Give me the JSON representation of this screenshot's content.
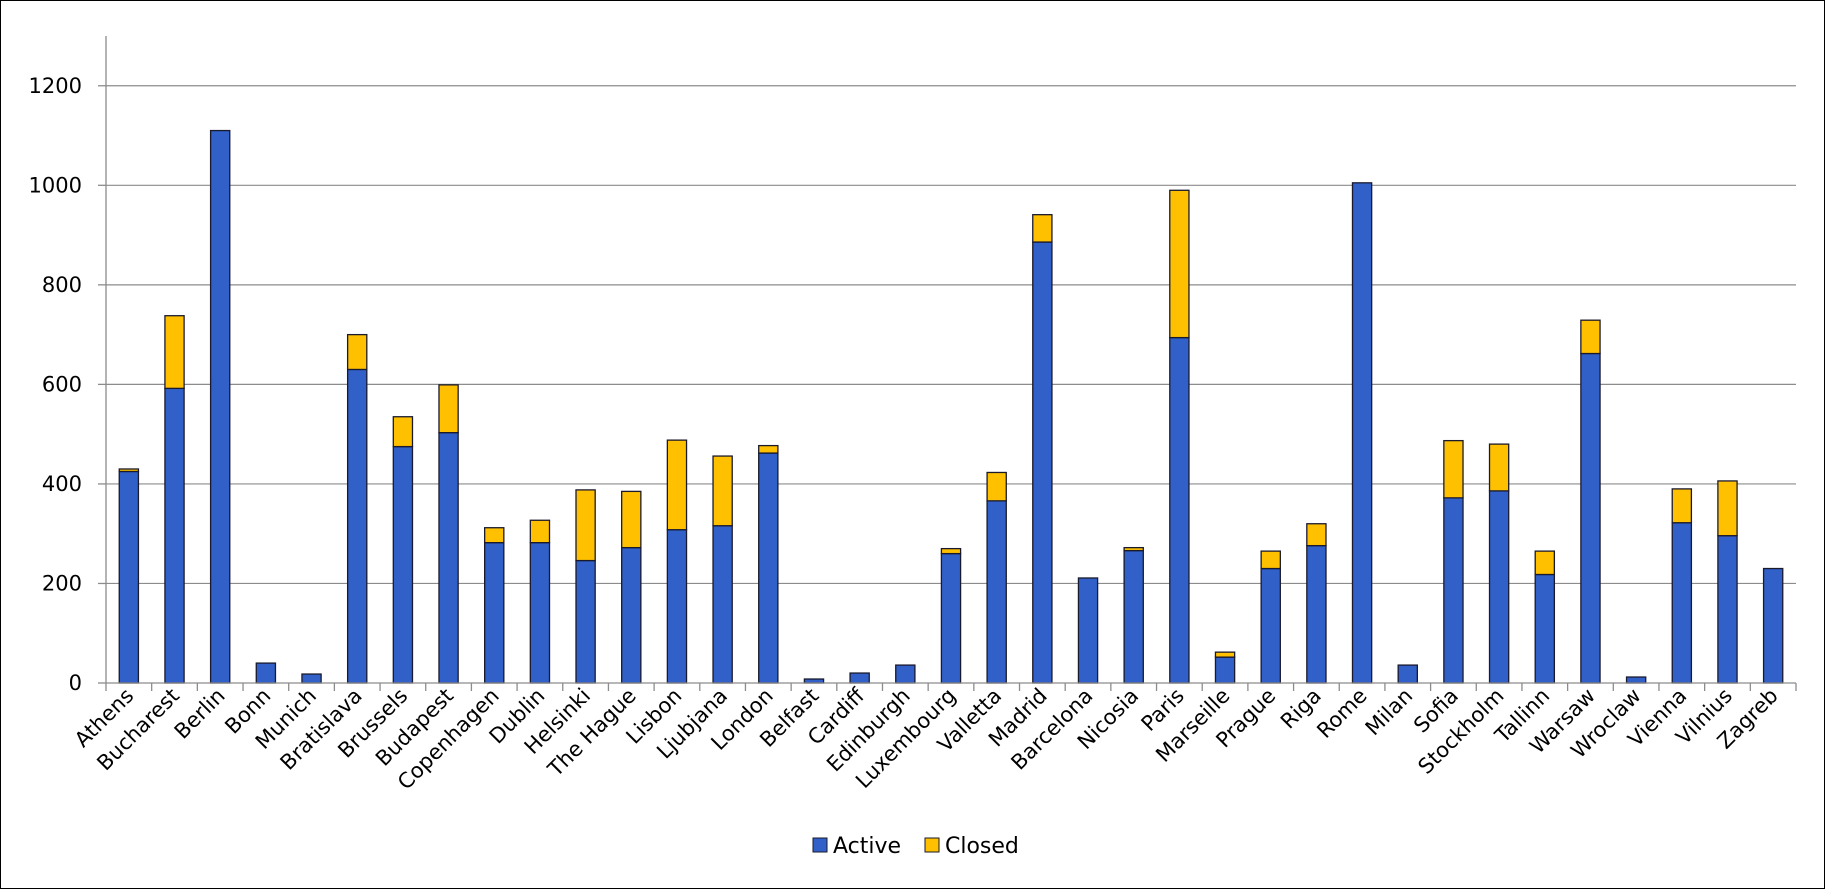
{
  "chart_data": {
    "type": "bar",
    "stacked": true,
    "categories": [
      "Athens",
      "Bucharest",
      "Berlin",
      "Bonn",
      "Munich",
      "Bratislava",
      "Brussels",
      "Budapest",
      "Copenhagen",
      "Dublin",
      "Helsinki",
      "The Hague",
      "Lisbon",
      "Ljubjana",
      "London",
      "Belfast",
      "Cardiff",
      "Edinburgh",
      "Luxembourg",
      "Valletta",
      "Madrid",
      "Barcelona",
      "Nicosia",
      "Paris",
      "Marseille",
      "Prague",
      "Riga",
      "Rome",
      "Milan",
      "Sofia",
      "Stockholm",
      "Tallinn",
      "Warsaw",
      "Wroclaw",
      "Vienna",
      "Vilnius",
      "Zagreb"
    ],
    "series": [
      {
        "name": "Active",
        "color": "#3060C8",
        "values": [
          425,
          592,
          1110,
          40,
          18,
          630,
          475,
          503,
          282,
          282,
          246,
          272,
          308,
          316,
          462,
          8,
          20,
          36,
          260,
          366,
          886,
          211,
          266,
          694,
          52,
          230,
          276,
          1005,
          36,
          372,
          386,
          218,
          662,
          12,
          322,
          296,
          230
        ]
      },
      {
        "name": "Closed",
        "color": "#FFC000",
        "values": [
          5,
          146,
          0,
          0,
          0,
          70,
          60,
          96,
          30,
          45,
          142,
          113,
          180,
          140,
          15,
          0,
          0,
          0,
          10,
          57,
          55,
          0,
          6,
          296,
          10,
          35,
          44,
          0,
          0,
          115,
          94,
          47,
          67,
          0,
          68,
          110,
          0
        ]
      }
    ],
    "ylim": [
      0,
      1300
    ],
    "yticks": [
      0,
      200,
      400,
      600,
      800,
      1000,
      1200
    ],
    "grid": true,
    "legend": "bottom-center",
    "title": "",
    "xlabel": "",
    "ylabel": ""
  }
}
